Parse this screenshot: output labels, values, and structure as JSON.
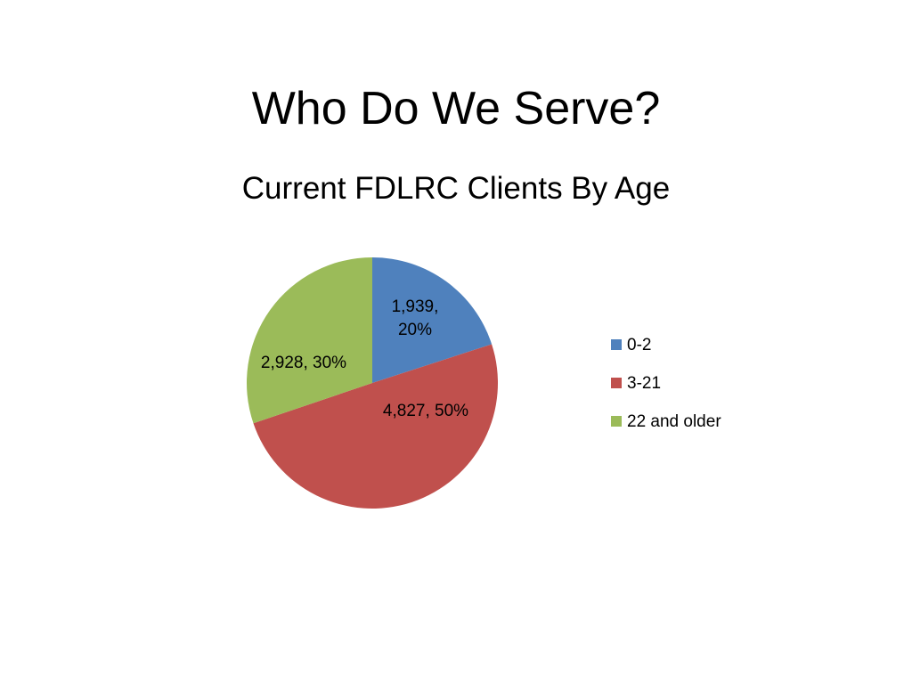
{
  "chart_data": {
    "type": "pie",
    "title": "Who Do We Serve?",
    "subtitle": "Current FDLRC Clients By Age",
    "categories": [
      "0-2",
      "3-21",
      "22 and older"
    ],
    "values": [
      1939,
      4827,
      2928
    ],
    "value_labels": [
      "1,939, 20%",
      "4,827, 50%",
      "2,928, 30%"
    ],
    "colors": [
      "#4f81bd",
      "#c0504d",
      "#9bbb59"
    ],
    "legend": "right"
  }
}
